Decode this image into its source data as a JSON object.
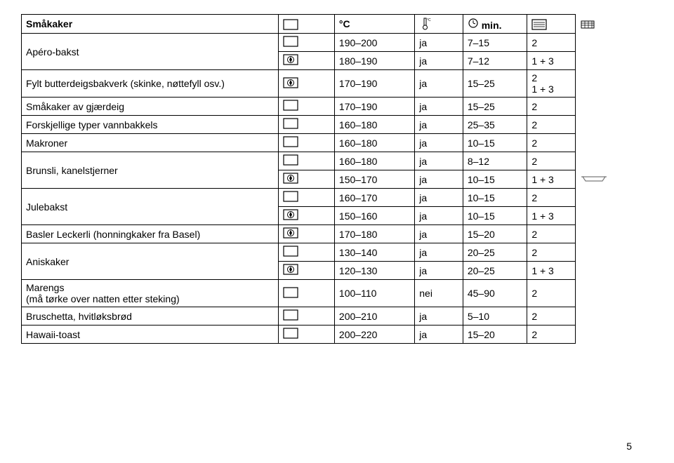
{
  "page_number": "5",
  "header": {
    "col1": "Småkaker",
    "temp_unit": "°C",
    "min_unit": "min."
  },
  "rows": [
    {
      "label": "Apéro-bakst",
      "merge_label": 2,
      "mode": "conv",
      "temp": "190–200",
      "ja": "ja",
      "min": "7–15",
      "lvl": "2",
      "extra": ""
    },
    {
      "mode": "fan",
      "temp": "180–190",
      "ja": "ja",
      "min": "7–12",
      "lvl": "1 + 3",
      "extra": ""
    },
    {
      "label": "Fylt butterdeigsbakverk (skinke, nøttefyll osv.)",
      "mode": "fan",
      "temp": "170–190",
      "ja": "ja",
      "min": "15–25",
      "lvl": "2\n1 + 3",
      "extra": ""
    },
    {
      "label": "Småkaker av gjærdeig",
      "mode": "conv",
      "temp": "170–190",
      "ja": "ja",
      "min": "15–25",
      "lvl": "2",
      "extra": ""
    },
    {
      "label": "Forskjellige typer vannbakkels",
      "mode": "conv",
      "temp": "160–180",
      "ja": "ja",
      "min": "25–35",
      "lvl": "2",
      "extra": ""
    },
    {
      "label": "Makroner",
      "mode": "conv",
      "temp": "160–180",
      "ja": "ja",
      "min": "10–15",
      "lvl": "2",
      "extra": ""
    },
    {
      "label": "Brunsli, kanelstjerner",
      "merge_label": 2,
      "mode": "conv",
      "temp": "160–180",
      "ja": "ja",
      "min": "8–12",
      "lvl": "2",
      "extra": ""
    },
    {
      "mode": "fan",
      "temp": "150–170",
      "ja": "ja",
      "min": "10–15",
      "lvl": "1 + 3",
      "extra": "tray"
    },
    {
      "label": "Julebakst",
      "merge_label": 2,
      "mode": "conv",
      "temp": "160–170",
      "ja": "ja",
      "min": "10–15",
      "lvl": "2",
      "extra": ""
    },
    {
      "mode": "fan",
      "temp": "150–160",
      "ja": "ja",
      "min": "10–15",
      "lvl": "1 + 3",
      "extra": ""
    },
    {
      "label": "Basler Leckerli (honningkaker fra Basel)",
      "mode": "fan",
      "temp": "170–180",
      "ja": "ja",
      "min": "15–20",
      "lvl": "2",
      "extra": ""
    },
    {
      "label": "Aniskaker",
      "merge_label": 2,
      "mode": "conv",
      "temp": "130–140",
      "ja": "ja",
      "min": "20–25",
      "lvl": "2",
      "extra": ""
    },
    {
      "mode": "fan",
      "temp": "120–130",
      "ja": "ja",
      "min": "20–25",
      "lvl": "1 + 3",
      "extra": ""
    },
    {
      "label": "Marengs\n(må tørke over natten etter steking)",
      "mode": "conv",
      "temp": "100–110",
      "ja": "nei",
      "min": "45–90",
      "lvl": "2",
      "extra": ""
    },
    {
      "label": "Bruschetta, hvitløksbrød",
      "mode": "conv",
      "temp": "200–210",
      "ja": "ja",
      "min": "5–10",
      "lvl": "2",
      "extra": ""
    },
    {
      "label": "Hawaii-toast",
      "mode": "conv",
      "temp": "200–220",
      "ja": "ja",
      "min": "15–20",
      "lvl": "2",
      "extra": ""
    }
  ],
  "colors": {
    "border": "#000000",
    "text": "#000000",
    "bg": "#ffffff"
  }
}
